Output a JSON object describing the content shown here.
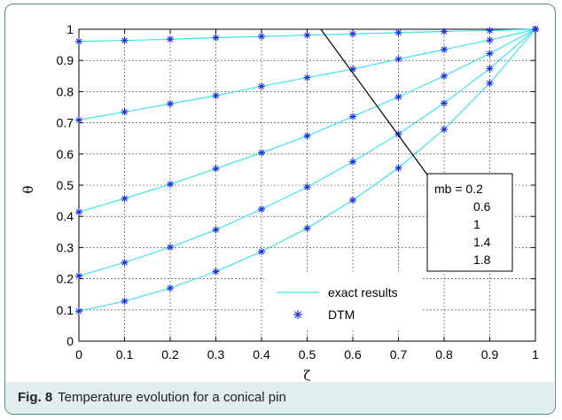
{
  "caption": {
    "label": "Fig. 8",
    "text": "Temperature evolution for a conical pin"
  },
  "colors": {
    "exact_line": "#3fe3ef",
    "dtm_marker": "#1a2fe0",
    "grid": "#000000",
    "arrow": "#000000"
  },
  "chart_data": {
    "type": "line",
    "title": "",
    "xlabel": "ζ",
    "ylabel": "θ",
    "xlim": [
      0,
      1
    ],
    "ylim": [
      0,
      1
    ],
    "xticks": [
      0,
      0.1,
      0.2,
      0.3,
      0.4,
      0.5,
      0.6,
      0.7,
      0.8,
      0.9,
      1
    ],
    "yticks": [
      0,
      0.1,
      0.2,
      0.3,
      0.4,
      0.5,
      0.6,
      0.7,
      0.8,
      0.9,
      1
    ],
    "xtick_labels": [
      "0",
      "0.1",
      "0.2",
      "0.3",
      "0.4",
      "0.5",
      "0.6",
      "0.7",
      "0.8",
      "0.9",
      "1"
    ],
    "ytick_labels": [
      "0",
      "0.1",
      "0.2",
      "0.3",
      "0.4",
      "0.5",
      "0.6",
      "0.7",
      "0.8",
      "0.9",
      "1"
    ],
    "grid": true,
    "x": [
      0,
      0.1,
      0.2,
      0.3,
      0.4,
      0.5,
      0.6,
      0.7,
      0.8,
      0.9,
      1
    ],
    "series": [
      {
        "mb": 0.2,
        "values": [
          0.961,
          0.964,
          0.968,
          0.973,
          0.977,
          0.981,
          0.985,
          0.989,
          0.993,
          0.996,
          1.0
        ]
      },
      {
        "mb": 0.6,
        "values": [
          0.709,
          0.735,
          0.761,
          0.787,
          0.817,
          0.845,
          0.872,
          0.904,
          0.935,
          0.965,
          1.0
        ]
      },
      {
        "mb": 1,
        "values": [
          0.414,
          0.457,
          0.503,
          0.553,
          0.604,
          0.658,
          0.72,
          0.783,
          0.85,
          0.922,
          1.0
        ]
      },
      {
        "mb": 1.4,
        "values": [
          0.209,
          0.252,
          0.301,
          0.357,
          0.423,
          0.494,
          0.575,
          0.664,
          0.763,
          0.874,
          1.0
        ]
      },
      {
        "mb": 1.8,
        "values": [
          0.096,
          0.128,
          0.17,
          0.223,
          0.287,
          0.362,
          0.452,
          0.555,
          0.679,
          0.827,
          1.0
        ]
      }
    ],
    "legend": {
      "placement": "bottom-center",
      "entries": [
        "exact results",
        "DTM"
      ]
    },
    "annotation": {
      "labels": [
        "mb = 0.2",
        "0.6",
        "1",
        "1.4",
        "1.8"
      ],
      "arrow_from": [
        0.53,
        1.0
      ],
      "arrow_to": [
        0.78,
        0.5
      ]
    }
  }
}
